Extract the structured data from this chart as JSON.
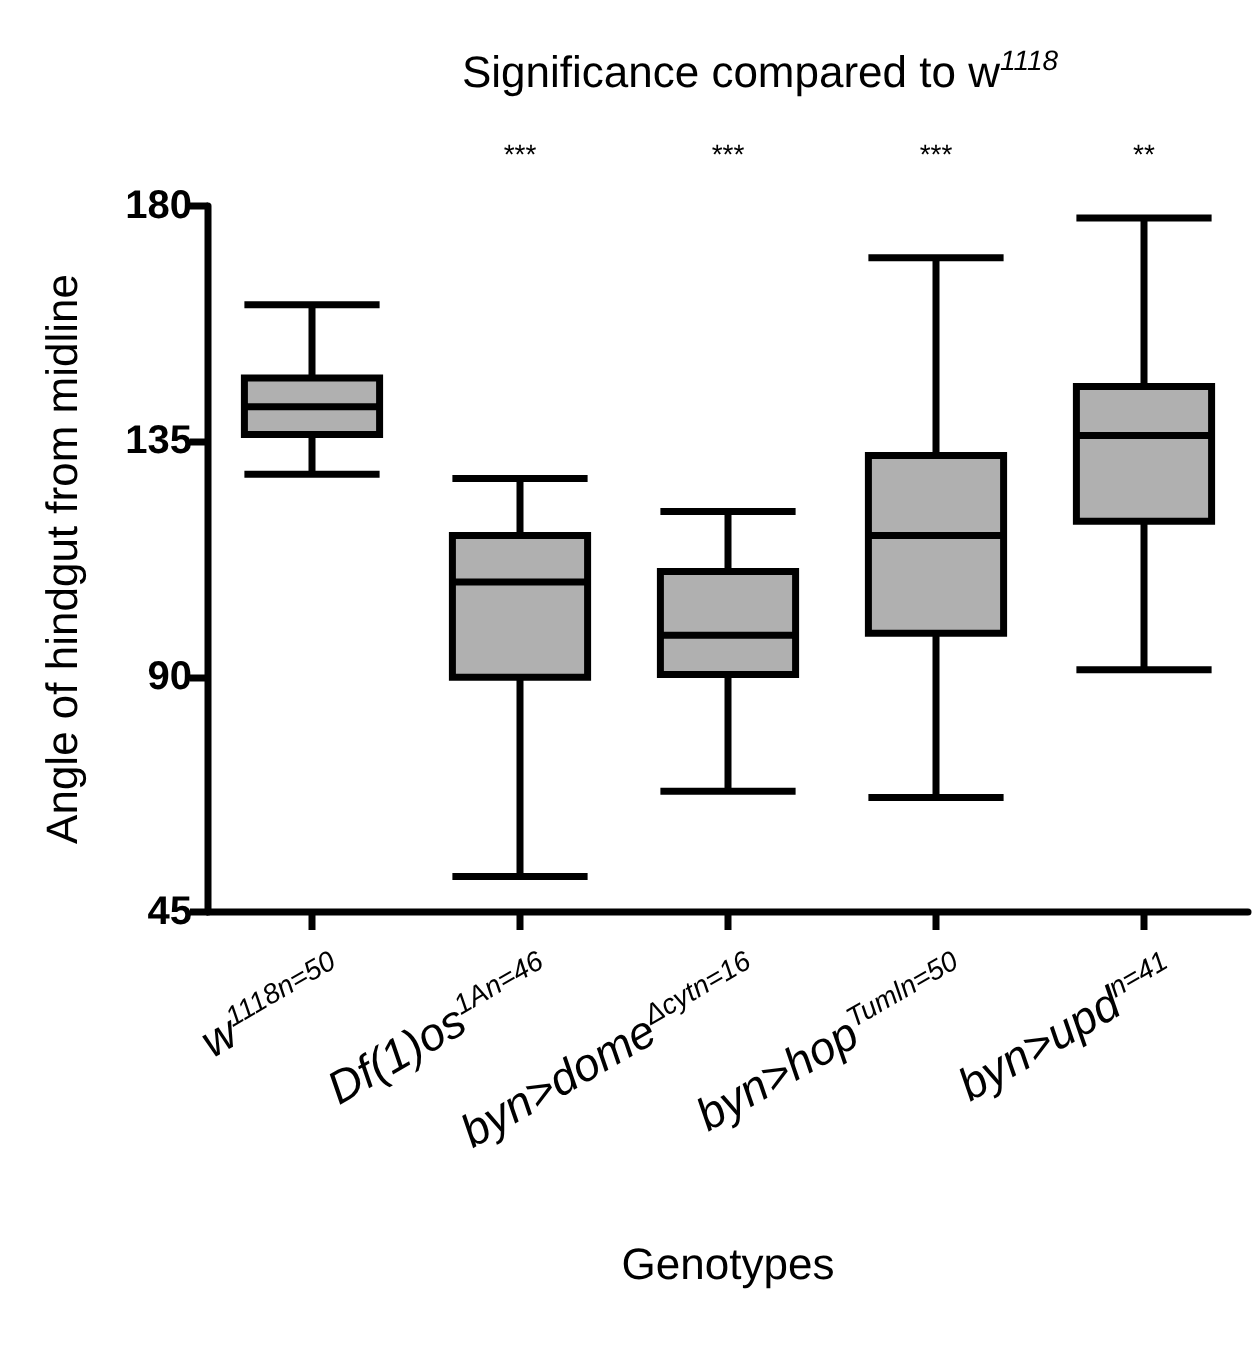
{
  "chart_data": {
    "type": "box",
    "title": "Significance compared to w$^{1118}$",
    "xlabel": "Genotypes",
    "ylabel": "Angle of hindgut from midline",
    "categories": [
      "w$^{1118}$$^{n=50}$",
      "Df(1)os$^{1A}$$^{n=46}$",
      "byn>dome$^{Δcyt}$$^{n=16}$",
      "byn>hop$^{Tuml}$$^{n=50}$",
      "byn>upd$^{n=41}$"
    ],
    "boxes": [
      {
        "low": 128.7,
        "q1": 136.3,
        "median": 141.6,
        "q3": 147.1,
        "high": 161.1
      },
      {
        "low": 51.8,
        "q1": 89.9,
        "median": 108.1,
        "q3": 117.0,
        "high": 127.9
      },
      {
        "low": 68.1,
        "q1": 90.4,
        "median": 97.9,
        "q3": 110.1,
        "high": 121.6
      },
      {
        "low": 66.9,
        "q1": 98.3,
        "median": 117.0,
        "q3": 132.3,
        "high": 170.1
      },
      {
        "low": 91.3,
        "q1": 119.7,
        "median": 136.1,
        "q3": 145.5,
        "high": 177.7
      }
    ],
    "color": "#b0b0b0",
    "annotations": [
      "***",
      "***",
      "***",
      "**"
    ],
    "ylim": [
      45,
      180
    ],
    "yticks": [
      45,
      90,
      135,
      180
    ],
    "grid": false
  }
}
